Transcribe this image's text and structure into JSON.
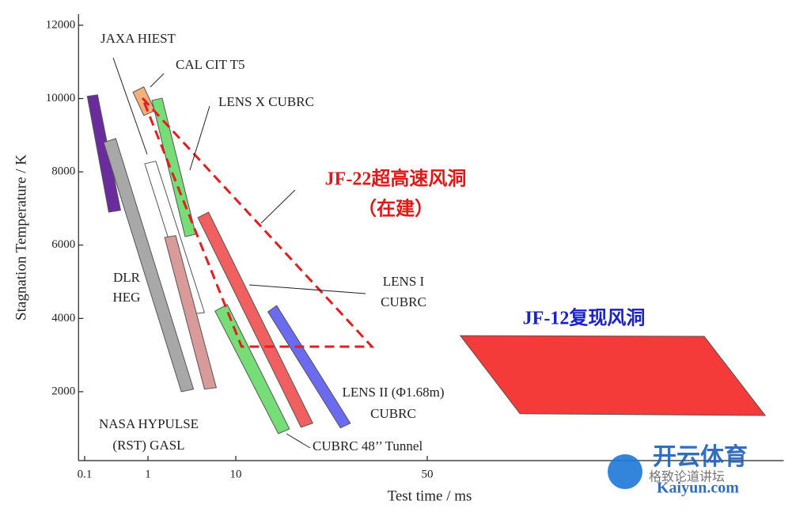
{
  "chart_data": {
    "type": "polygon",
    "xlabel": "Test time / ms",
    "ylabel": "Stagnation Temperature / K",
    "xlim": [
      0.08,
      1000
    ],
    "xticks": [
      0.1,
      1,
      10,
      50
    ],
    "ylim": [
      120,
      12300
    ],
    "yticks": [
      2000,
      4000,
      6000,
      8000,
      10000,
      12000
    ],
    "shapes": [
      {
        "label": [],
        "color": "#6a2c9c",
        "x": [
          0.11,
          0.16,
          0.37,
          0.24
        ],
        "y": [
          10060,
          10100,
          6950,
          6900
        ]
      },
      {
        "label": [
          "DLR",
          "HEG"
        ],
        "color": "#a8a8a8",
        "x": [
          0.2,
          0.31,
          3.3,
          2.4
        ],
        "y": [
          8800,
          8910,
          2070,
          2000
        ]
      },
      {
        "label": [
          "JAXA HIEST"
        ],
        "color": "#ffffff",
        "x": [
          0.89,
          1.23,
          4.4,
          3.2
        ],
        "y": [
          8220,
          8290,
          4160,
          4120
        ]
      },
      {
        "label": [
          "NASA HYPULSE",
          "(RST) GASL"
        ],
        "color": "#d99a9a",
        "x": [
          1.55,
          2.07,
          6.0,
          4.4
        ],
        "y": [
          6210,
          6260,
          2110,
          2070
        ]
      },
      {
        "label": [
          "CAL CIT T5"
        ],
        "color": "#f5b07a",
        "x": [
          0.58,
          0.86,
          1.2,
          0.86
        ],
        "y": [
          10170,
          10320,
          9670,
          9540
        ]
      },
      {
        "label": [
          "LENS X CUBRC"
        ],
        "color": "#77dd77",
        "x": [
          1.11,
          1.45,
          3.5,
          2.65
        ],
        "y": [
          9950,
          10010,
          6300,
          6230
        ]
      },
      {
        "label": [
          "LENS I",
          "CUBRC"
        ],
        "color": "#f06060",
        "x": [
          3.7,
          4.9,
          19.1,
          17.3
        ],
        "y": [
          6750,
          6900,
          1140,
          1030
        ]
      },
      {
        "label": [
          "CUBRC 48’’ Tunnel"
        ],
        "color": "#77dd77",
        "x": [
          5.8,
          8.0,
          15.7,
          14.3
        ],
        "y": [
          4200,
          4380,
          985,
          855
        ]
      },
      {
        "label": [
          "LENS II (Φ1.68m)",
          "CUBRC"
        ],
        "color": "#6b6bf0",
        "x": [
          13.1,
          14.1,
          26.2,
          24.1
        ],
        "y": [
          4180,
          4350,
          1140,
          1010
        ]
      },
      {
        "label": [
          "JF-12复现风洞"
        ],
        "color": "#f53a3a",
        "x": [
          66,
          513,
          857,
          109
        ],
        "y": [
          3530,
          3510,
          1350,
          1400
        ]
      },
      {
        "label": [
          "JF-22超高速风洞",
          "（在建）"
        ],
        "color": "#e02020",
        "dashed": true,
        "x": [
          0.82,
          31.4,
          10.5
        ],
        "y": [
          10010,
          3230,
          3230
        ]
      }
    ],
    "watermark": [
      "开云体育",
      "Kaiyun.com",
      "格致论道讲坛"
    ]
  }
}
